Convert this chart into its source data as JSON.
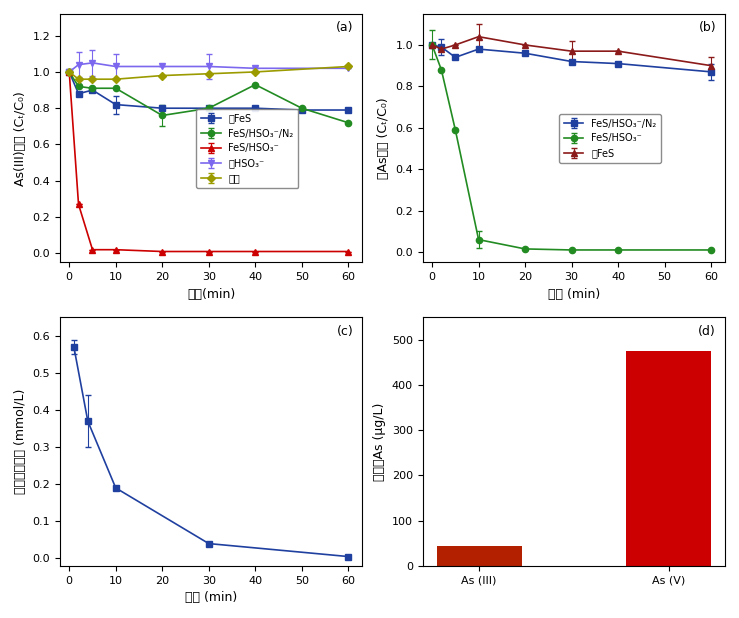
{
  "panel_a": {
    "title": "(a)",
    "xlabel": "时间(min)",
    "ylabel": "As(III)浓度 (Cₜ/C₀)",
    "xlim": [
      -2,
      63
    ],
    "ylim": [
      -0.05,
      1.32
    ],
    "yticks": [
      0.0,
      0.2,
      0.4,
      0.6,
      0.8,
      1.0,
      1.2
    ],
    "xticks": [
      0,
      10,
      20,
      30,
      40,
      50,
      60
    ],
    "series": {
      "FeS": {
        "x": [
          0,
          2,
          5,
          10,
          20,
          30,
          40,
          50,
          60
        ],
        "y": [
          1.0,
          0.88,
          0.9,
          0.82,
          0.8,
          0.8,
          0.8,
          0.79,
          0.79
        ],
        "yerr": [
          0.0,
          0.0,
          0.0,
          0.05,
          0.0,
          0.0,
          0.0,
          0.0,
          0.0
        ],
        "color": "#2040A0",
        "marker": "s",
        "label": "仅FeS"
      },
      "FeS_HSO3_N2": {
        "x": [
          0,
          2,
          5,
          10,
          20,
          30,
          40,
          50,
          60
        ],
        "y": [
          1.0,
          0.92,
          0.91,
          0.91,
          0.76,
          0.8,
          0.93,
          0.8,
          0.72
        ],
        "yerr": [
          0.0,
          0.0,
          0.0,
          0.0,
          0.06,
          0.0,
          0.0,
          0.0,
          0.0
        ],
        "color": "#228B22",
        "marker": "o",
        "label": "FeS/HSO₃⁻/N₂"
      },
      "FeS_HSO3": {
        "x": [
          0,
          2,
          5,
          10,
          20,
          30,
          40,
          60
        ],
        "y": [
          1.0,
          0.27,
          0.02,
          0.02,
          0.01,
          0.01,
          0.01,
          0.01
        ],
        "yerr": [
          0.0,
          0.0,
          0.0,
          0.0,
          0.0,
          0.0,
          0.0,
          0.0
        ],
        "color": "#cc0000",
        "marker": "^",
        "label": "FeS/HSO₃⁻"
      },
      "HSO3": {
        "x": [
          0,
          2,
          5,
          10,
          20,
          30,
          40,
          60
        ],
        "y": [
          1.0,
          1.04,
          1.05,
          1.03,
          1.03,
          1.03,
          1.02,
          1.02
        ],
        "yerr": [
          0.0,
          0.07,
          0.07,
          0.07,
          0.0,
          0.07,
          0.0,
          0.0
        ],
        "color": "#7B68EE",
        "marker": "v",
        "label": "仅HSO₃⁻"
      },
      "blank": {
        "x": [
          0,
          2,
          5,
          10,
          20,
          30,
          40,
          60
        ],
        "y": [
          1.0,
          0.96,
          0.96,
          0.96,
          0.98,
          0.99,
          1.0,
          1.03
        ],
        "yerr": [
          0.0,
          0.0,
          0.0,
          0.0,
          0.0,
          0.0,
          0.0,
          0.0
        ],
        "color": "#9B9B00",
        "marker": "D",
        "label": "空白"
      }
    }
  },
  "panel_b": {
    "title": "(b)",
    "xlabel": "时间 (min)",
    "ylabel": "总As浓度 (Cₜ/C₀)",
    "xlim": [
      -2,
      63
    ],
    "ylim": [
      -0.05,
      1.15
    ],
    "yticks": [
      0.0,
      0.2,
      0.4,
      0.6,
      0.8,
      1.0
    ],
    "xticks": [
      0,
      10,
      20,
      30,
      40,
      50,
      60
    ],
    "series": {
      "FeS_HSO3_N2": {
        "x": [
          0,
          2,
          5,
          10,
          20,
          30,
          40,
          60
        ],
        "y": [
          1.0,
          0.99,
          0.94,
          0.98,
          0.96,
          0.92,
          0.91,
          0.87
        ],
        "yerr": [
          0.0,
          0.04,
          0.0,
          0.0,
          0.0,
          0.0,
          0.0,
          0.04
        ],
        "color": "#2040A0",
        "marker": "s",
        "label": "FeS/HSO₃⁻/N₂"
      },
      "FeS_HSO3": {
        "x": [
          0,
          2,
          5,
          10,
          20,
          30,
          40,
          60
        ],
        "y": [
          1.0,
          0.88,
          0.59,
          0.06,
          0.015,
          0.01,
          0.01,
          0.01
        ],
        "yerr": [
          0.07,
          0.0,
          0.0,
          0.04,
          0.0,
          0.0,
          0.0,
          0.0
        ],
        "color": "#228B22",
        "marker": "o",
        "label": "FeS/HSO₃⁻"
      },
      "FeS": {
        "x": [
          0,
          2,
          5,
          10,
          20,
          30,
          40,
          60
        ],
        "y": [
          1.0,
          0.98,
          1.0,
          1.04,
          1.0,
          0.97,
          0.97,
          0.9
        ],
        "yerr": [
          0.0,
          0.0,
          0.0,
          0.06,
          0.0,
          0.05,
          0.0,
          0.04
        ],
        "color": "#8B1A1A",
        "marker": "^",
        "label": "仅FeS"
      }
    }
  },
  "panel_c": {
    "title": "(c)",
    "xlabel": "时间 (min)",
    "ylabel": "亚硫酸盐浓度 (mmol/L)",
    "xlim": [
      -2,
      63
    ],
    "ylim": [
      -0.02,
      0.65
    ],
    "yticks": [
      0.0,
      0.1,
      0.2,
      0.3,
      0.4,
      0.5,
      0.6
    ],
    "xticks": [
      0,
      10,
      20,
      30,
      40,
      50,
      60
    ],
    "x": [
      1,
      4,
      10,
      30,
      60
    ],
    "y": [
      0.57,
      0.37,
      0.19,
      0.04,
      0.005
    ],
    "yerr": [
      0.02,
      0.07,
      0.0,
      0.0,
      0.0
    ],
    "color": "#2040A0",
    "marker": "s"
  },
  "panel_d": {
    "title": "(d)",
    "xlabel": "",
    "ylabel": "吸附态As (μg/L)",
    "ylim": [
      0,
      550
    ],
    "yticks": [
      0,
      100,
      200,
      300,
      400,
      500
    ],
    "categories": [
      "As (III)",
      "As (V)"
    ],
    "values": [
      45,
      475
    ],
    "colors": [
      "#B22000",
      "#CC0000"
    ]
  },
  "font_size": 9,
  "label_font_size": 9,
  "tick_font_size": 8
}
